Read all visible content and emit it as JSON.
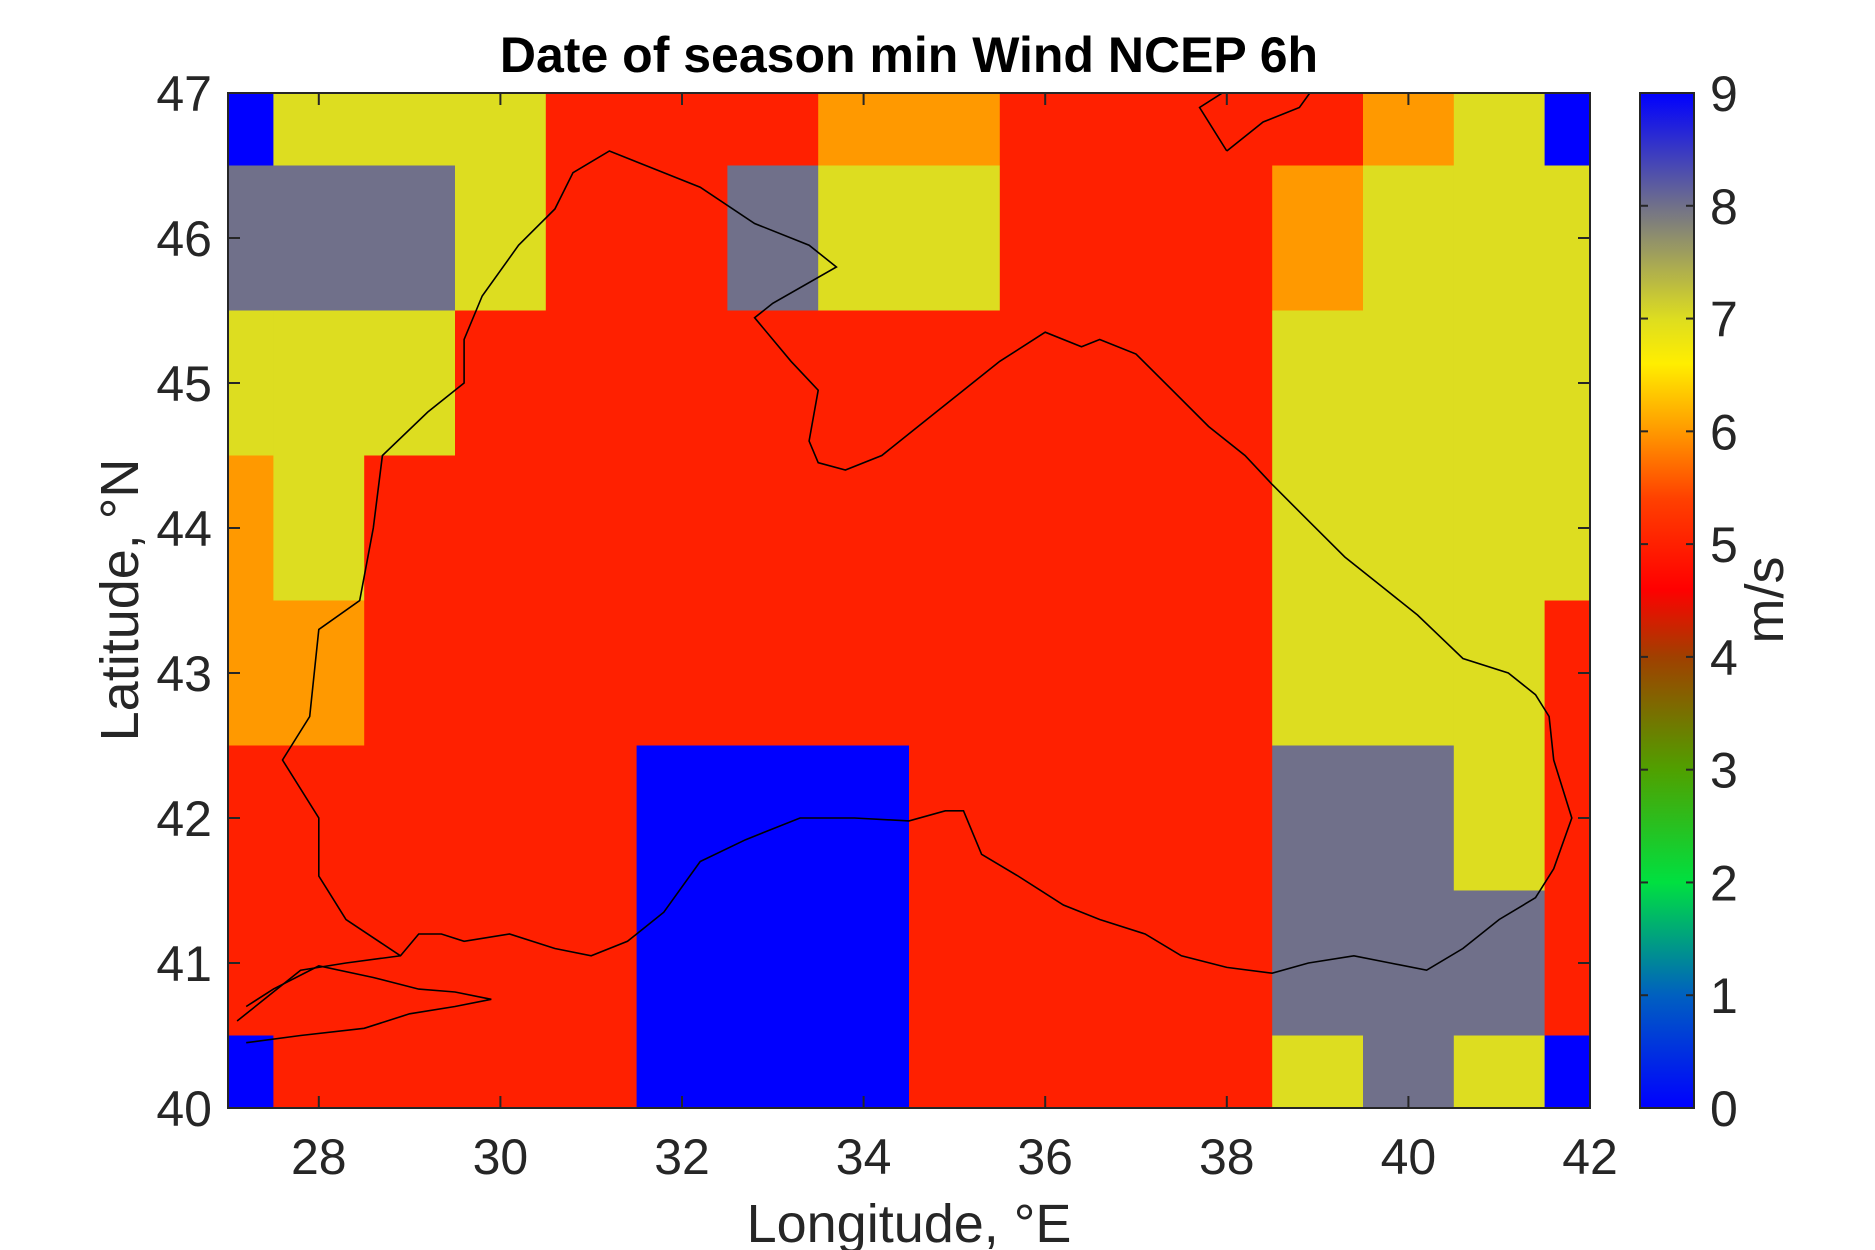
{
  "chart_data": {
    "type": "heatmap",
    "title": "Date of season min Wind NCEP 6h",
    "xlabel": "Longitude, °E",
    "ylabel": "Latitude, °N",
    "xlim": [
      27,
      42
    ],
    "ylim": [
      40,
      47
    ],
    "xticks": [
      28,
      30,
      32,
      34,
      36,
      38,
      40,
      42
    ],
    "yticks": [
      40,
      41,
      42,
      43,
      44,
      45,
      46,
      47
    ],
    "x_centers": [
      27,
      28,
      29,
      30,
      31,
      32,
      33,
      34,
      35,
      36,
      37,
      38,
      39,
      40,
      41,
      42
    ],
    "y_centers": [
      47,
      46,
      45,
      44,
      43,
      42,
      41,
      40
    ],
    "z": [
      [
        0,
        7,
        7,
        7,
        5,
        5,
        5,
        6,
        6,
        5,
        5,
        5,
        5,
        6,
        7,
        0
      ],
      [
        8,
        8,
        8,
        7,
        5,
        5,
        8,
        7,
        7,
        5,
        5,
        5,
        6,
        7,
        7,
        7
      ],
      [
        7,
        7,
        7,
        5,
        5,
        5,
        5,
        5,
        5,
        5,
        5,
        5,
        7,
        7,
        7,
        7
      ],
      [
        6,
        7,
        5,
        5,
        5,
        5,
        5,
        5,
        5,
        5,
        5,
        5,
        7,
        7,
        7,
        7
      ],
      [
        6,
        6,
        5,
        5,
        5,
        5,
        5,
        5,
        5,
        5,
        5,
        5,
        7,
        7,
        7,
        5
      ],
      [
        5,
        5,
        5,
        5,
        5,
        0,
        0,
        0,
        5,
        5,
        5,
        5,
        8,
        8,
        7,
        5
      ],
      [
        5,
        5,
        5,
        5,
        5,
        0,
        0,
        0,
        5,
        5,
        5,
        5,
        8,
        8,
        8,
        5
      ],
      [
        0,
        5,
        5,
        5,
        5,
        0,
        0,
        0,
        5,
        5,
        5,
        5,
        7,
        8,
        7,
        0
      ]
    ],
    "colorbar": {
      "label": "m/s",
      "range": [
        0,
        9
      ],
      "ticks": [
        0,
        1,
        2,
        3,
        4,
        5,
        6,
        7,
        8,
        9
      ],
      "stops": [
        {
          "v": 0,
          "color": "#0000ff"
        },
        {
          "v": 1,
          "color": "#0060c0"
        },
        {
          "v": 2,
          "color": "#00e040"
        },
        {
          "v": 3,
          "color": "#50a000"
        },
        {
          "v": 4,
          "color": "#a04000"
        },
        {
          "v": 4.6,
          "color": "#ff0000"
        },
        {
          "v": 5.4,
          "color": "#ff4000"
        },
        {
          "v": 6,
          "color": "#ff9900"
        },
        {
          "v": 6.6,
          "color": "#ffee00"
        },
        {
          "v": 7,
          "color": "#dddd20"
        },
        {
          "v": 8,
          "color": "#70708a"
        },
        {
          "v": 9,
          "color": "#0000ff"
        }
      ]
    },
    "coastline": [
      [
        [
          27.1,
          40.6
        ],
        [
          27.4,
          40.75
        ],
        [
          27.8,
          40.95
        ],
        [
          28.3,
          41.0
        ],
        [
          28.9,
          41.05
        ],
        [
          29.1,
          41.2
        ],
        [
          29.35,
          41.2
        ],
        [
          29.6,
          41.15
        ],
        [
          30.1,
          41.2
        ],
        [
          30.6,
          41.1
        ],
        [
          31.0,
          41.05
        ],
        [
          31.4,
          41.15
        ],
        [
          31.8,
          41.35
        ],
        [
          32.2,
          41.7
        ],
        [
          32.7,
          41.85
        ],
        [
          33.3,
          42.0
        ],
        [
          33.9,
          42.0
        ],
        [
          34.5,
          41.98
        ],
        [
          34.9,
          42.05
        ],
        [
          35.1,
          42.05
        ],
        [
          35.3,
          41.75
        ],
        [
          35.7,
          41.6
        ],
        [
          36.2,
          41.4
        ],
        [
          36.6,
          41.3
        ],
        [
          37.1,
          41.2
        ],
        [
          37.5,
          41.05
        ],
        [
          38.0,
          40.97
        ],
        [
          38.5,
          40.93
        ],
        [
          38.9,
          41.0
        ],
        [
          39.4,
          41.05
        ],
        [
          39.8,
          41.0
        ],
        [
          40.2,
          40.95
        ],
        [
          40.6,
          41.1
        ],
        [
          41.0,
          41.3
        ],
        [
          41.4,
          41.45
        ],
        [
          41.6,
          41.65
        ],
        [
          41.8,
          42.0
        ],
        [
          41.6,
          42.4
        ],
        [
          41.55,
          42.7
        ],
        [
          41.4,
          42.85
        ],
        [
          41.1,
          43.0
        ],
        [
          40.6,
          43.1
        ],
        [
          40.1,
          43.4
        ],
        [
          39.7,
          43.6
        ],
        [
          39.3,
          43.8
        ],
        [
          38.9,
          44.05
        ],
        [
          38.5,
          44.3
        ],
        [
          38.2,
          44.5
        ],
        [
          37.8,
          44.7
        ],
        [
          37.4,
          44.95
        ],
        [
          37.0,
          45.2
        ],
        [
          36.6,
          45.3
        ],
        [
          36.4,
          45.25
        ],
        [
          36.0,
          45.35
        ],
        [
          35.5,
          45.15
        ],
        [
          35.1,
          44.95
        ],
        [
          34.8,
          44.8
        ],
        [
          34.5,
          44.65
        ],
        [
          34.2,
          44.5
        ],
        [
          33.8,
          44.4
        ],
        [
          33.5,
          44.45
        ],
        [
          33.4,
          44.6
        ],
        [
          33.5,
          44.95
        ],
        [
          33.2,
          45.15
        ],
        [
          32.8,
          45.45
        ],
        [
          33.0,
          45.55
        ],
        [
          33.7,
          45.8
        ],
        [
          33.4,
          45.95
        ],
        [
          32.8,
          46.1
        ],
        [
          32.2,
          46.35
        ],
        [
          31.6,
          46.5
        ],
        [
          31.2,
          46.6
        ],
        [
          30.8,
          46.45
        ],
        [
          30.6,
          46.2
        ],
        [
          30.2,
          45.95
        ],
        [
          29.8,
          45.6
        ],
        [
          29.6,
          45.3
        ],
        [
          29.6,
          45.0
        ],
        [
          29.2,
          44.8
        ],
        [
          28.7,
          44.5
        ],
        [
          28.6,
          44.0
        ],
        [
          28.45,
          43.5
        ],
        [
          28.0,
          43.3
        ],
        [
          27.9,
          42.7
        ],
        [
          27.6,
          42.4
        ],
        [
          28.0,
          42.0
        ],
        [
          28.0,
          41.6
        ],
        [
          28.3,
          41.3
        ],
        [
          28.9,
          41.05
        ]
      ],
      [
        [
          27.2,
          40.45
        ],
        [
          27.8,
          40.5
        ],
        [
          28.5,
          40.55
        ],
        [
          29.0,
          40.65
        ],
        [
          29.5,
          40.7
        ],
        [
          29.9,
          40.75
        ],
        [
          29.5,
          40.8
        ],
        [
          29.1,
          40.82
        ],
        [
          28.6,
          40.9
        ],
        [
          28.0,
          40.98
        ],
        [
          27.5,
          40.82
        ],
        [
          27.2,
          40.7
        ]
      ],
      [
        [
          38.0,
          46.6
        ],
        [
          37.7,
          46.9
        ],
        [
          38.2,
          47.1
        ],
        [
          38.7,
          47.15
        ],
        [
          39.2,
          47.25
        ],
        [
          38.8,
          46.9
        ],
        [
          38.4,
          46.8
        ],
        [
          38.0,
          46.6
        ]
      ]
    ]
  }
}
